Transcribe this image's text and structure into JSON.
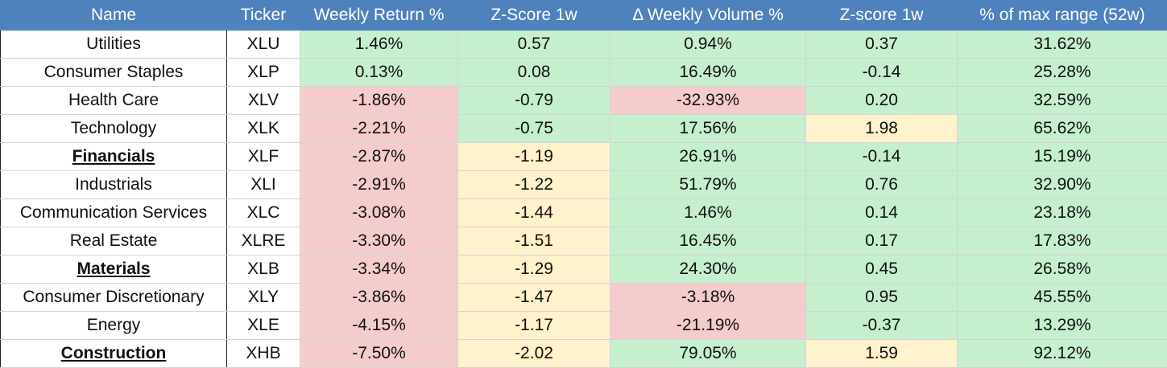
{
  "table": {
    "headers": [
      "Name",
      "Ticker",
      "Weekly Return %",
      "Z-Score 1w",
      "Δ Weekly Volume %",
      "Z-score 1w",
      "% of max range (52w)"
    ],
    "header_color": "#4f81bd",
    "rows": [
      {
        "cells": [
          "Utilities",
          "XLU",
          "1.46%",
          "0.57",
          "0.94%",
          "0.37",
          "31.62%"
        ],
        "emphasis": false,
        "fills": [
          "#ffffff",
          "#ffffff",
          "#c6efce",
          "#c6efce",
          "#c6efce",
          "#c6efce",
          "#c6efce"
        ]
      },
      {
        "cells": [
          "Consumer Staples",
          "XLP",
          "0.13%",
          "0.08",
          "16.49%",
          "-0.14",
          "25.28%"
        ],
        "emphasis": false,
        "fills": [
          "#ffffff",
          "#ffffff",
          "#c6efce",
          "#c6efce",
          "#c6efce",
          "#c6efce",
          "#c6efce"
        ]
      },
      {
        "cells": [
          "Health Care",
          "XLV",
          "-1.86%",
          "-0.79",
          "-32.93%",
          "0.20",
          "32.59%"
        ],
        "emphasis": false,
        "fills": [
          "#ffffff",
          "#ffffff",
          "#f4cccc",
          "#c6efce",
          "#f4cccc",
          "#c6efce",
          "#c6efce"
        ]
      },
      {
        "cells": [
          "Technology",
          "XLK",
          "-2.21%",
          "-0.75",
          "17.56%",
          "1.98",
          "65.62%"
        ],
        "emphasis": false,
        "fills": [
          "#ffffff",
          "#ffffff",
          "#f4cccc",
          "#c6efce",
          "#c6efce",
          "#fff2cc",
          "#c6efce"
        ]
      },
      {
        "cells": [
          "Financials",
          "XLF",
          "-2.87%",
          "-1.19",
          "26.91%",
          "-0.14",
          "15.19%"
        ],
        "emphasis": true,
        "fills": [
          "#ffffff",
          "#ffffff",
          "#f4cccc",
          "#fff2cc",
          "#c6efce",
          "#c6efce",
          "#c6efce"
        ]
      },
      {
        "cells": [
          "Industrials",
          "XLI",
          "-2.91%",
          "-1.22",
          "51.79%",
          "0.76",
          "32.90%"
        ],
        "emphasis": false,
        "fills": [
          "#ffffff",
          "#ffffff",
          "#f4cccc",
          "#fff2cc",
          "#c6efce",
          "#c6efce",
          "#c6efce"
        ]
      },
      {
        "cells": [
          "Communication Services",
          "XLC",
          "-3.08%",
          "-1.44",
          "1.46%",
          "0.14",
          "23.18%"
        ],
        "emphasis": false,
        "fills": [
          "#ffffff",
          "#ffffff",
          "#f4cccc",
          "#fff2cc",
          "#c6efce",
          "#c6efce",
          "#c6efce"
        ]
      },
      {
        "cells": [
          "Real Estate",
          "XLRE",
          "-3.30%",
          "-1.51",
          "16.45%",
          "0.17",
          "17.83%"
        ],
        "emphasis": false,
        "fills": [
          "#ffffff",
          "#ffffff",
          "#f4cccc",
          "#fff2cc",
          "#c6efce",
          "#c6efce",
          "#c6efce"
        ]
      },
      {
        "cells": [
          "Materials",
          "XLB",
          "-3.34%",
          "-1.29",
          "24.30%",
          "0.45",
          "26.58%"
        ],
        "emphasis": true,
        "fills": [
          "#ffffff",
          "#ffffff",
          "#f4cccc",
          "#fff2cc",
          "#c6efce",
          "#c6efce",
          "#c6efce"
        ]
      },
      {
        "cells": [
          "Consumer Discretionary",
          "XLY",
          "-3.86%",
          "-1.47",
          "-3.18%",
          "0.95",
          "45.55%"
        ],
        "emphasis": false,
        "fills": [
          "#ffffff",
          "#ffffff",
          "#f4cccc",
          "#fff2cc",
          "#f4cccc",
          "#c6efce",
          "#c6efce"
        ]
      },
      {
        "cells": [
          "Energy",
          "XLE",
          "-4.15%",
          "-1.17",
          "-21.19%",
          "-0.37",
          "13.29%"
        ],
        "emphasis": false,
        "fills": [
          "#ffffff",
          "#ffffff",
          "#f4cccc",
          "#fff2cc",
          "#f4cccc",
          "#c6efce",
          "#c6efce"
        ]
      },
      {
        "cells": [
          "Construction",
          "XHB",
          "-7.50%",
          "-2.02",
          "79.05%",
          "1.59",
          "92.12%"
        ],
        "emphasis": true,
        "fills": [
          "#ffffff",
          "#ffffff",
          "#f4cccc",
          "#fff2cc",
          "#c6efce",
          "#fff2cc",
          "#c6efce"
        ]
      }
    ]
  }
}
